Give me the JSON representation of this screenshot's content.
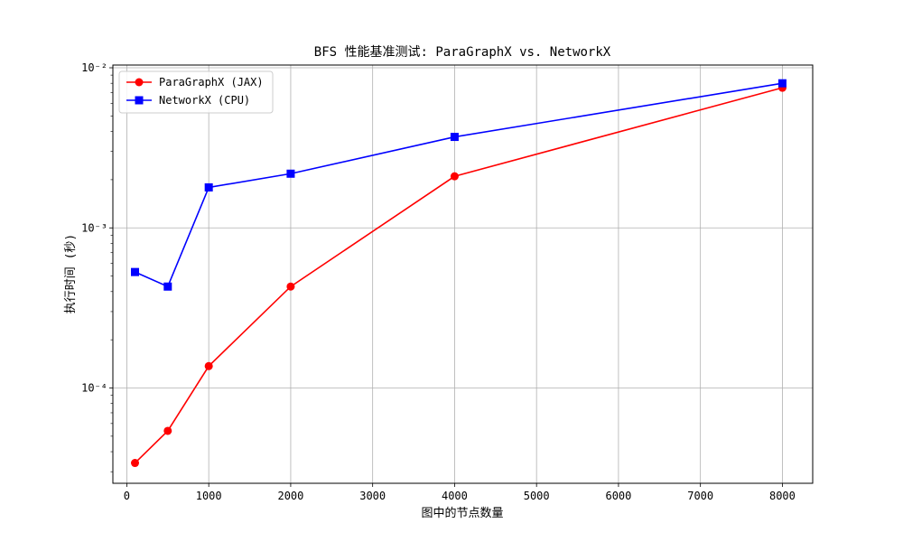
{
  "chart_data": {
    "type": "line",
    "title": "BFS 性能基准测试: ParaGraphX vs. NetworkX",
    "xlabel": "图中的节点数量",
    "ylabel": "执行时间 (秒)",
    "x": [
      100,
      500,
      1000,
      2000,
      4000,
      8000
    ],
    "series": [
      {
        "name": "ParaGraphX (JAX)",
        "color": "#ff0000",
        "marker": "circle",
        "values": [
          3.4e-05,
          5.4e-05,
          0.000137,
          0.00043,
          0.0021,
          0.0075
        ]
      },
      {
        "name": "NetworkX (CPU)",
        "color": "#0000ff",
        "marker": "square",
        "values": [
          0.00053,
          0.00043,
          0.00179,
          0.00218,
          0.0037,
          0.008
        ]
      }
    ],
    "xlim": [
      -170,
      8370
    ],
    "ylim": [
      2.54e-05,
      0.0104
    ],
    "yscale": "log",
    "xticks": [
      0,
      1000,
      2000,
      3000,
      4000,
      5000,
      6000,
      7000,
      8000
    ],
    "xtick_labels": [
      "0",
      "1000",
      "2000",
      "3000",
      "4000",
      "5000",
      "6000",
      "7000",
      "8000"
    ],
    "yticks": [
      0.0001,
      0.001,
      0.01
    ],
    "ytick_labels": [
      "10⁻⁴",
      "10⁻³",
      "10⁻²"
    ],
    "grid": true,
    "legend_position": "upper-left"
  }
}
